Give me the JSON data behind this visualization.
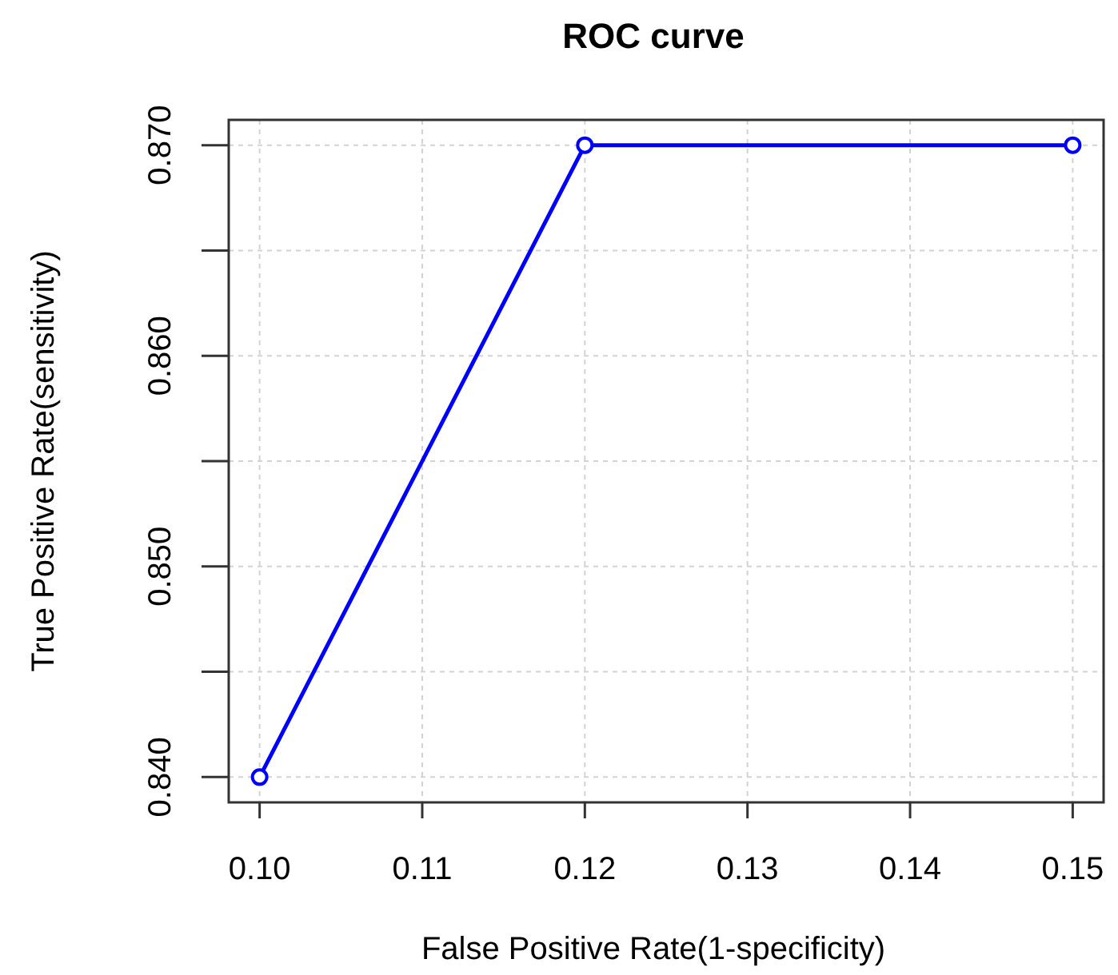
{
  "chart_data": {
    "type": "line",
    "title": "ROC curve",
    "xlabel": "False Positive Rate(1-specificity)",
    "ylabel": "True Positive Rate(sensitivity)",
    "categories": [
      "0.10",
      "0.11",
      "0.12",
      "0.13",
      "0.14",
      "0.15"
    ],
    "series": [
      {
        "color": "#0000ff",
        "x": [
          "0.10",
          "0.12",
          "0.15"
        ],
        "values": [
          0.84,
          0.87,
          0.87
        ]
      }
    ],
    "ylim": [
      0.8388,
      0.8712
    ],
    "yticks": [
      {
        "value": 0.84,
        "label": "0.840"
      },
      {
        "value": 0.845,
        "label": null
      },
      {
        "value": 0.85,
        "label": "0.850"
      },
      {
        "value": 0.855,
        "label": null
      },
      {
        "value": 0.86,
        "label": "0.860"
      },
      {
        "value": 0.865,
        "label": null
      },
      {
        "value": 0.87,
        "label": "0.870"
      }
    ],
    "grid": true,
    "marker": "circle",
    "line_style": "solid"
  }
}
